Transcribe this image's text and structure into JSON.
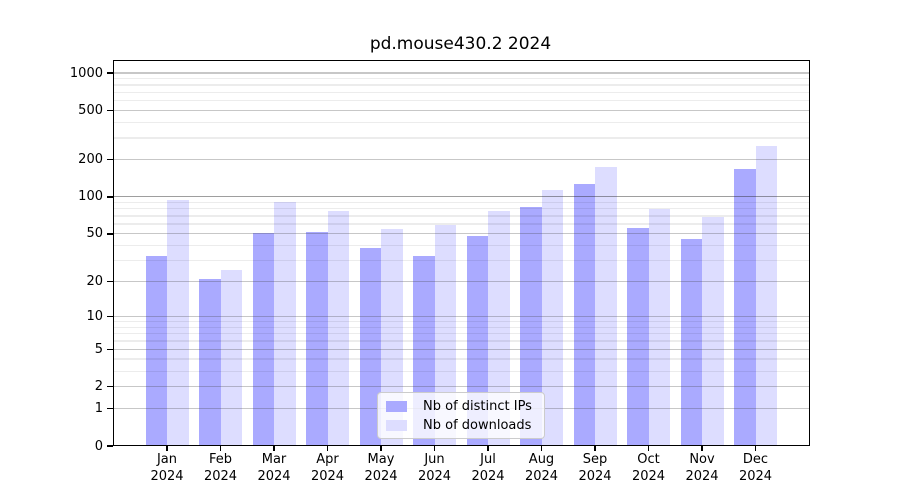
{
  "title": "pd.mouse430.2 2024",
  "legend": {
    "items": [
      {
        "label": "Nb of distinct IPs",
        "color": "#aaaaff"
      },
      {
        "label": "Nb of downloads",
        "color": "#ddddff"
      }
    ]
  },
  "y_axis": {
    "labeled_ticks": [
      0,
      1,
      2,
      5,
      10,
      20,
      50,
      100,
      200,
      500,
      1000
    ],
    "minor_ticks": [
      3,
      4,
      6,
      7,
      8,
      9,
      30,
      40,
      60,
      70,
      80,
      90,
      300,
      400,
      600,
      700,
      800,
      900
    ]
  },
  "x_axis": {
    "months": [
      "Jan",
      "Feb",
      "Mar",
      "Apr",
      "May",
      "Jun",
      "Jul",
      "Aug",
      "Sep",
      "Oct",
      "Nov",
      "Dec"
    ],
    "year": "2024"
  },
  "chart_data": {
    "type": "bar",
    "scale": "log1p",
    "title": "pd.mouse430.2 2024",
    "categories": [
      "Jan 2024",
      "Feb 2024",
      "Mar 2024",
      "Apr 2024",
      "May 2024",
      "Jun 2024",
      "Jul 2024",
      "Aug 2024",
      "Sep 2024",
      "Oct 2024",
      "Nov 2024",
      "Dec 2024"
    ],
    "series": [
      {
        "name": "Nb of distinct IPs",
        "color": "#aaaaff",
        "values": [
          33,
          21,
          51,
          52,
          38,
          33,
          48,
          83,
          128,
          56,
          45,
          167
        ]
      },
      {
        "name": "Nb of downloads",
        "color": "#ddddff",
        "values": [
          95,
          25,
          91,
          76,
          55,
          59,
          77,
          113,
          175,
          80,
          68,
          259
        ]
      }
    ],
    "ylim": [
      0,
      1270
    ],
    "grid": true,
    "legend_position": "lower center"
  }
}
